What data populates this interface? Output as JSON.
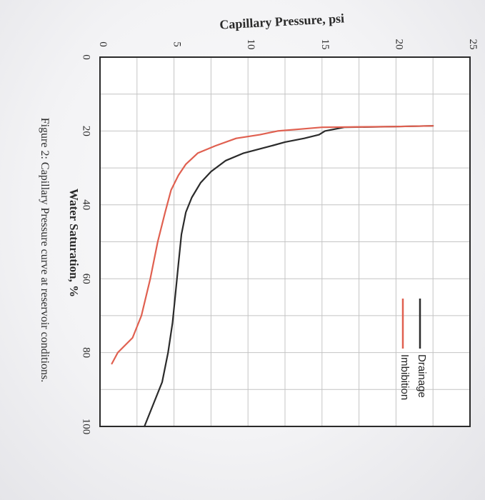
{
  "chart_data": {
    "type": "line",
    "title": "",
    "xlabel": "Water Saturation, %",
    "ylabel": "Capillary Pressure, psi",
    "xlim": [
      0,
      100
    ],
    "ylim": [
      0,
      25
    ],
    "x_ticks": [
      "0",
      "20",
      "40",
      "60",
      "80",
      "100"
    ],
    "y_ticks": [
      "0",
      "5",
      "10",
      "15",
      "20",
      "25"
    ],
    "grid": true,
    "legend_position": "top-right",
    "series": [
      {
        "name": "Drainage",
        "color": "#2b2b2b",
        "points": [
          [
            100,
            3.0
          ],
          [
            94,
            3.6
          ],
          [
            88,
            4.2
          ],
          [
            80,
            4.6
          ],
          [
            72,
            4.9
          ],
          [
            64,
            5.1
          ],
          [
            56,
            5.3
          ],
          [
            48,
            5.5
          ],
          [
            42,
            5.8
          ],
          [
            38,
            6.2
          ],
          [
            34,
            6.8
          ],
          [
            31,
            7.5
          ],
          [
            28,
            8.5
          ],
          [
            26,
            9.7
          ],
          [
            24,
            11.6
          ],
          [
            23,
            12.5
          ],
          [
            22,
            13.8
          ],
          [
            21,
            14.8
          ],
          [
            20,
            15.2
          ],
          [
            19,
            16.5
          ],
          [
            18.8,
            20.0
          ],
          [
            18.6,
            22.5
          ]
        ]
      },
      {
        "name": "Imbibition",
        "color": "#e06050",
        "points": [
          [
            83,
            0.8
          ],
          [
            80,
            1.2
          ],
          [
            76,
            2.2
          ],
          [
            70,
            2.8
          ],
          [
            60,
            3.4
          ],
          [
            50,
            3.9
          ],
          [
            42,
            4.4
          ],
          [
            36,
            4.8
          ],
          [
            32,
            5.3
          ],
          [
            29,
            5.8
          ],
          [
            26,
            6.6
          ],
          [
            24,
            7.8
          ],
          [
            22,
            9.2
          ],
          [
            21,
            10.8
          ],
          [
            20,
            12.0
          ],
          [
            19.5,
            13.5
          ],
          [
            19,
            15.0
          ],
          [
            18.8,
            20.0
          ],
          [
            18.6,
            22.5
          ]
        ]
      }
    ]
  },
  "figure": {
    "caption": "Figure 2: Capillary Pressure curve at reservoir conditions."
  }
}
